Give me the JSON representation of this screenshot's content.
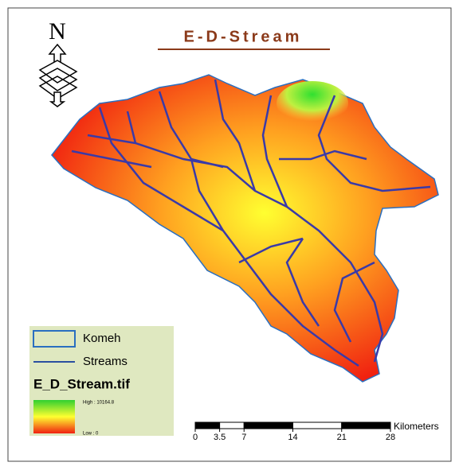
{
  "title": "E-D-Stream",
  "north": "N",
  "legend": {
    "items": [
      "Komeh",
      "Streams"
    ],
    "raster": {
      "name": "E_D_Stream.tif",
      "high": "High : 10164.8",
      "low": "Low : 0"
    }
  },
  "scale_bar": {
    "unit": "Kilometers",
    "ticks": [
      0,
      3.5,
      7,
      14,
      21,
      28
    ]
  }
}
